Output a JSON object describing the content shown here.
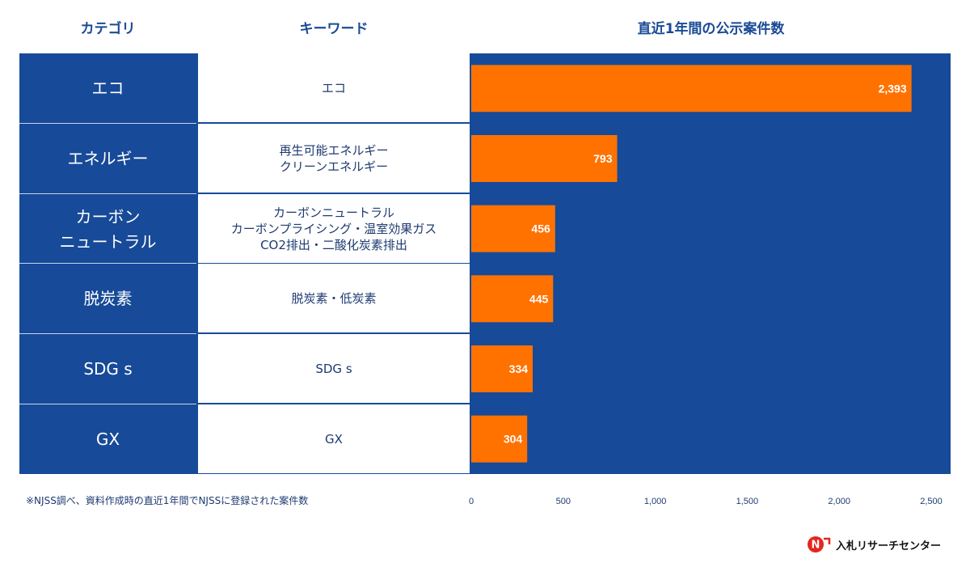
{
  "headers": {
    "category": "カテゴリ",
    "keyword": "キーワード",
    "count": "直近1年間の公示案件数"
  },
  "rows": [
    {
      "category": "エコ",
      "keywords": "エコ"
    },
    {
      "category": "エネルギー",
      "keywords": "再生可能エネルギー\nクリーンエネルギー"
    },
    {
      "category": "カーボン\nニュートラル",
      "keywords": "カーボンニュートラル\nカーボンプライシング・温室効果ガス\nCO2排出・二酸化炭素排出"
    },
    {
      "category": "脱炭素",
      "keywords": "脱炭素・低炭素"
    },
    {
      "category": "SDG s",
      "keywords": "SDG s"
    },
    {
      "category": "GX",
      "keywords": "GX"
    }
  ],
  "chart_data": {
    "type": "bar",
    "orientation": "horizontal",
    "title": "直近1年間の公示案件数",
    "categories": [
      "エコ",
      "エネルギー",
      "カーボンニュートラル",
      "脱炭素",
      "SDG s",
      "GX"
    ],
    "values": [
      2393,
      793,
      456,
      445,
      334,
      304
    ],
    "value_labels": [
      "2,393",
      "793",
      "456",
      "445",
      "334",
      "304"
    ],
    "xlim": [
      0,
      2500
    ],
    "xticks": [
      0,
      500,
      1000,
      1500,
      2000,
      2500
    ],
    "xtick_labels": [
      "0",
      "500",
      "1,000",
      "1,500",
      "2,000",
      "2,500"
    ],
    "grid": false
  },
  "footnote": "※NJSS調べ、資料作成時の直近1年間でNJSSに登録された案件数",
  "logo": {
    "mark": "N",
    "text": "入札リサーチセンター"
  },
  "colors": {
    "navy": "#174a98",
    "bar": "#ff7200",
    "header_text": "#1a4a96",
    "white": "#ffffff"
  }
}
